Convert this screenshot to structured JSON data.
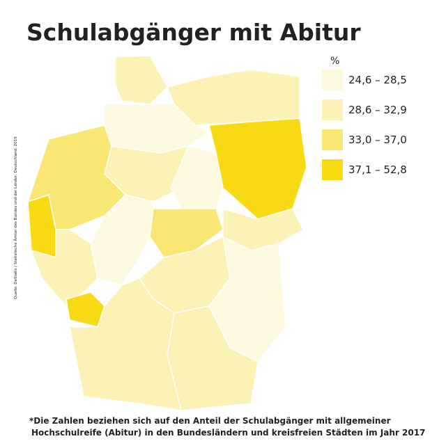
{
  "title": "Schulabgänger mit Abitur",
  "legend": {
    "unit": "%",
    "items": [
      {
        "label": "24,6 – 28,5",
        "color": "#fefae0"
      },
      {
        "label": "28,6 – 32,9",
        "color": "#fcf2b6"
      },
      {
        "label": "33,0 – 37,0",
        "color": "#fae672"
      },
      {
        "label": "37,1 – 52,8",
        "color": "#f8da14"
      }
    ]
  },
  "source": "Quelle: DeStatis / Statistische Ämter des Bundes und der Länder, Deutschland, 2019",
  "footnote": [
    "*Die Zahlen beziehen sich auf den Anteil der Schulabgänger mit allgemeiner",
    "Hochschulreife (Abitur) in den Bundesländern und kreisfreien Städten im Jahr 2017"
  ]
}
